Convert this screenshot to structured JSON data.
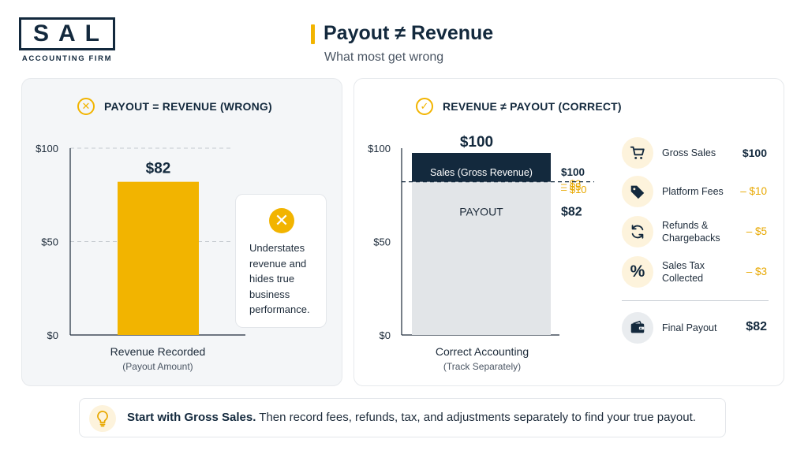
{
  "logo": {
    "letters": "SAL",
    "subtitle": "ACCOUNTING FIRM"
  },
  "header": {
    "title": "Payout ≠ Revenue",
    "subtitle": "What most get wrong"
  },
  "colors": {
    "accent": "#f2b400",
    "navy": "#13293d",
    "light_yellow": "#fbe7b0",
    "pale_yellow": "#fdf3dc",
    "gray": "#e2e5e8"
  },
  "left_panel": {
    "heading": "PAYOUT = REVENUE (WRONG)",
    "heading_icon": "x-circle-icon",
    "callout": {
      "icon": "x-icon",
      "text": "Understates revenue and hides true business performance."
    }
  },
  "right_panel": {
    "heading": "REVENUE ≠ PAYOUT (CORRECT)",
    "heading_icon": "check-circle-icon"
  },
  "breakdown": {
    "items": [
      {
        "icon": "cart-icon",
        "label": "Gross Sales",
        "value": "$100",
        "type": "total"
      },
      {
        "icon": "tag-icon",
        "label": "Platform Fees",
        "value": "– $10",
        "type": "deduction"
      },
      {
        "icon": "refresh-icon",
        "label": "Refunds & Chargebacks",
        "value": "– $5",
        "type": "deduction"
      },
      {
        "icon": "percent-icon",
        "label": "Sales Tax Collected",
        "value": "– $3",
        "type": "deduction"
      }
    ],
    "final": {
      "icon": "wallet-icon",
      "label": "Final Payout",
      "value": "$82"
    }
  },
  "tip": {
    "icon": "lightbulb-icon",
    "bold": "Start with Gross Sales.",
    "text": "Then record fees, refunds, tax, and adjustments separately to find your true payout."
  },
  "chart_data": [
    {
      "type": "bar",
      "categories": [
        "Revenue Recorded"
      ],
      "category_sublabels": [
        "(Payout Amount)"
      ],
      "values": [
        82
      ],
      "data_labels": [
        "$82"
      ],
      "yticks": [
        "$100",
        "$50",
        "$0"
      ],
      "ytick_values": [
        100,
        50,
        0
      ],
      "ylim": [
        0,
        100
      ],
      "grid": "dashed",
      "color": "#f2b400"
    },
    {
      "type": "bar",
      "stacked": true,
      "categories": [
        "Correct Accounting"
      ],
      "category_sublabels": [
        "(Track Separately)"
      ],
      "total_label": "$100",
      "yticks": [
        "$100",
        "$50",
        "$0"
      ],
      "ytick_values": [
        100,
        50,
        0
      ],
      "ylim": [
        0,
        100
      ],
      "segments": [
        {
          "name": "Sales (Gross Revenue)",
          "value": 100,
          "label": "$100",
          "color": "#13293d",
          "text_color": "#ffffff"
        },
        {
          "name": "Platform Fees",
          "value": 10,
          "label": "– $10",
          "color": "#fbe7b0",
          "text_color": "#1d2b3a"
        },
        {
          "name": "Refunds & Chargebacks",
          "value": 5,
          "label": "– $5",
          "color": "#fdf3dc",
          "text_color": "#1d2b3a"
        },
        {
          "name": "Sales Tax Collected",
          "value": 3,
          "label": "– $3",
          "color": "#e2e5e8",
          "text_color": "#1d2b3a"
        },
        {
          "name": "PAYOUT",
          "value": 82,
          "label": "$82",
          "color": "#e2e5e8",
          "text_color": "#1d2b3a"
        }
      ]
    }
  ]
}
